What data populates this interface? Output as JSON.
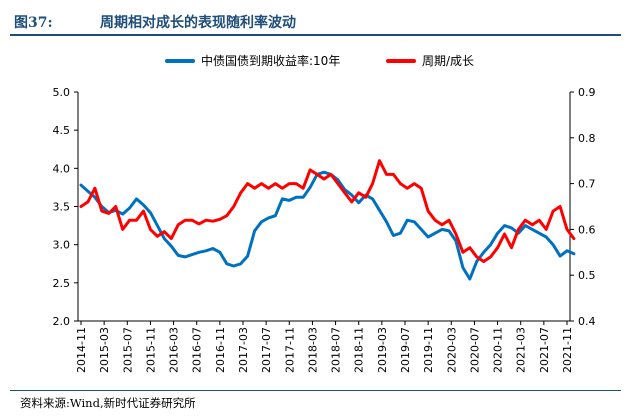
{
  "header": {
    "figure_number": "图37:",
    "title": "周期相对成长的表现随利率波动"
  },
  "source": "资料来源:Wind,新时代证券研究所",
  "colors": {
    "header_blue": "#1f4e79",
    "series_blue": "#0070c0",
    "series_red": "#ff0000"
  },
  "chart_data": {
    "type": "line",
    "title": "周期相对成长的表现随利率波动",
    "legend_position": "top-center",
    "grid": false,
    "x_ticks": [
      "2014-11",
      "2015-03",
      "2015-07",
      "2015-11",
      "2016-03",
      "2016-07",
      "2016-11",
      "2017-03",
      "2017-07",
      "2017-11",
      "2018-03",
      "2018-07",
      "2018-11",
      "2019-03",
      "2019-07",
      "2019-11",
      "2020-03",
      "2020-07",
      "2020-11",
      "2021-03",
      "2021-07",
      "2021-11"
    ],
    "y_left": {
      "min": 2.0,
      "max": 5.0,
      "ticks": [
        "2.0",
        "2.5",
        "3.0",
        "3.5",
        "4.0",
        "4.5",
        "5.0"
      ]
    },
    "y_right": {
      "min": 0.4,
      "max": 0.9,
      "ticks": [
        "0.4",
        "0.5",
        "0.6",
        "0.7",
        "0.8",
        "0.9"
      ]
    },
    "series": [
      {
        "name": "中债国债到期收益率:10年",
        "axis": "left",
        "color": "#0070c0",
        "points": [
          [
            0.0,
            3.78
          ],
          [
            0.3,
            3.7
          ],
          [
            0.6,
            3.62
          ],
          [
            0.9,
            3.5
          ],
          [
            1.2,
            3.42
          ],
          [
            1.5,
            3.45
          ],
          [
            1.8,
            3.4
          ],
          [
            2.1,
            3.48
          ],
          [
            2.4,
            3.6
          ],
          [
            2.7,
            3.52
          ],
          [
            3.0,
            3.42
          ],
          [
            3.3,
            3.25
          ],
          [
            3.6,
            3.08
          ],
          [
            3.9,
            2.98
          ],
          [
            4.2,
            2.86
          ],
          [
            4.5,
            2.84
          ],
          [
            4.8,
            2.87
          ],
          [
            5.1,
            2.9
          ],
          [
            5.4,
            2.92
          ],
          [
            5.7,
            2.95
          ],
          [
            6.0,
            2.9
          ],
          [
            6.3,
            2.75
          ],
          [
            6.6,
            2.72
          ],
          [
            6.9,
            2.75
          ],
          [
            7.2,
            2.85
          ],
          [
            7.5,
            3.18
          ],
          [
            7.8,
            3.3
          ],
          [
            8.1,
            3.35
          ],
          [
            8.4,
            3.38
          ],
          [
            8.7,
            3.6
          ],
          [
            9.0,
            3.58
          ],
          [
            9.3,
            3.62
          ],
          [
            9.6,
            3.62
          ],
          [
            9.9,
            3.75
          ],
          [
            10.2,
            3.92
          ],
          [
            10.5,
            3.95
          ],
          [
            10.8,
            3.92
          ],
          [
            11.1,
            3.85
          ],
          [
            11.4,
            3.72
          ],
          [
            11.7,
            3.65
          ],
          [
            12.0,
            3.55
          ],
          [
            12.3,
            3.65
          ],
          [
            12.6,
            3.6
          ],
          [
            12.9,
            3.45
          ],
          [
            13.2,
            3.3
          ],
          [
            13.5,
            3.12
          ],
          [
            13.8,
            3.15
          ],
          [
            14.1,
            3.32
          ],
          [
            14.4,
            3.3
          ],
          [
            14.7,
            3.2
          ],
          [
            15.0,
            3.1
          ],
          [
            15.3,
            3.15
          ],
          [
            15.6,
            3.2
          ],
          [
            15.9,
            3.18
          ],
          [
            16.2,
            3.05
          ],
          [
            16.5,
            2.7
          ],
          [
            16.8,
            2.55
          ],
          [
            17.1,
            2.78
          ],
          [
            17.4,
            2.9
          ],
          [
            17.7,
            3.0
          ],
          [
            18.0,
            3.15
          ],
          [
            18.3,
            3.25
          ],
          [
            18.6,
            3.22
          ],
          [
            18.9,
            3.15
          ],
          [
            19.2,
            3.25
          ],
          [
            19.5,
            3.2
          ],
          [
            19.8,
            3.15
          ],
          [
            20.1,
            3.1
          ],
          [
            20.4,
            3.0
          ],
          [
            20.7,
            2.85
          ],
          [
            21.0,
            2.92
          ],
          [
            21.3,
            2.88
          ]
        ]
      },
      {
        "name": "周期/成长",
        "axis": "right",
        "color": "#ff0000",
        "points": [
          [
            0.0,
            0.65
          ],
          [
            0.3,
            0.66
          ],
          [
            0.6,
            0.69
          ],
          [
            0.9,
            0.64
          ],
          [
            1.2,
            0.635
          ],
          [
            1.5,
            0.65
          ],
          [
            1.8,
            0.6
          ],
          [
            2.1,
            0.62
          ],
          [
            2.4,
            0.62
          ],
          [
            2.7,
            0.64
          ],
          [
            3.0,
            0.6
          ],
          [
            3.3,
            0.585
          ],
          [
            3.6,
            0.595
          ],
          [
            3.9,
            0.58
          ],
          [
            4.2,
            0.61
          ],
          [
            4.5,
            0.62
          ],
          [
            4.8,
            0.62
          ],
          [
            5.1,
            0.612
          ],
          [
            5.4,
            0.62
          ],
          [
            5.7,
            0.618
          ],
          [
            6.0,
            0.622
          ],
          [
            6.3,
            0.63
          ],
          [
            6.6,
            0.65
          ],
          [
            6.9,
            0.68
          ],
          [
            7.2,
            0.7
          ],
          [
            7.5,
            0.69
          ],
          [
            7.8,
            0.7
          ],
          [
            8.1,
            0.69
          ],
          [
            8.4,
            0.7
          ],
          [
            8.7,
            0.69
          ],
          [
            9.0,
            0.7
          ],
          [
            9.3,
            0.7
          ],
          [
            9.6,
            0.69
          ],
          [
            9.9,
            0.73
          ],
          [
            10.2,
            0.72
          ],
          [
            10.5,
            0.71
          ],
          [
            10.8,
            0.72
          ],
          [
            11.1,
            0.7
          ],
          [
            11.4,
            0.68
          ],
          [
            11.7,
            0.66
          ],
          [
            12.0,
            0.68
          ],
          [
            12.3,
            0.67
          ],
          [
            12.6,
            0.7
          ],
          [
            12.9,
            0.75
          ],
          [
            13.2,
            0.72
          ],
          [
            13.5,
            0.72
          ],
          [
            13.8,
            0.7
          ],
          [
            14.1,
            0.69
          ],
          [
            14.4,
            0.7
          ],
          [
            14.7,
            0.69
          ],
          [
            15.0,
            0.64
          ],
          [
            15.3,
            0.62
          ],
          [
            15.6,
            0.61
          ],
          [
            15.9,
            0.62
          ],
          [
            16.2,
            0.59
          ],
          [
            16.5,
            0.55
          ],
          [
            16.8,
            0.56
          ],
          [
            17.1,
            0.54
          ],
          [
            17.4,
            0.53
          ],
          [
            17.7,
            0.54
          ],
          [
            18.0,
            0.56
          ],
          [
            18.3,
            0.59
          ],
          [
            18.6,
            0.56
          ],
          [
            18.9,
            0.6
          ],
          [
            19.2,
            0.62
          ],
          [
            19.5,
            0.61
          ],
          [
            19.8,
            0.62
          ],
          [
            20.1,
            0.6
          ],
          [
            20.4,
            0.64
          ],
          [
            20.7,
            0.65
          ],
          [
            21.0,
            0.6
          ],
          [
            21.3,
            0.58
          ]
        ]
      }
    ]
  }
}
